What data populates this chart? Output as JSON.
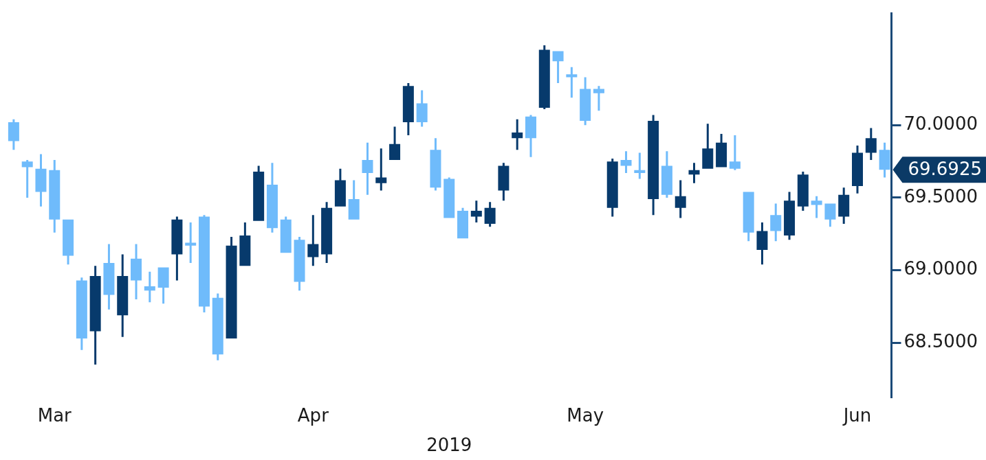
{
  "chart_data": {
    "type": "candlestick",
    "xlabel": "2019",
    "categories": [
      null,
      null,
      null,
      "Mar",
      null,
      null,
      null,
      null,
      null,
      null,
      null,
      null,
      null,
      null,
      null,
      null,
      null,
      null,
      null,
      null,
      null,
      null,
      "Apr",
      null,
      null,
      null,
      null,
      null,
      null,
      null,
      null,
      null,
      null,
      null,
      null,
      null,
      null,
      null,
      null,
      null,
      null,
      null,
      "May",
      null,
      null,
      null,
      null,
      null,
      null,
      null,
      null,
      null,
      null,
      null,
      null,
      null,
      null,
      null,
      null,
      null,
      null,
      null,
      "Jun",
      null,
      null
    ],
    "ohlc": [
      [
        70.02,
        70.04,
        69.83,
        69.89
      ],
      [
        69.75,
        69.76,
        69.5,
        69.71
      ],
      [
        69.7,
        69.8,
        69.44,
        69.54
      ],
      [
        69.69,
        69.76,
        69.26,
        69.35
      ],
      [
        69.35,
        69.35,
        69.04,
        69.1
      ],
      [
        68.93,
        68.95,
        68.45,
        68.53
      ],
      [
        68.58,
        69.03,
        68.35,
        68.96
      ],
      [
        69.05,
        69.18,
        68.73,
        68.83
      ],
      [
        68.69,
        69.11,
        68.54,
        68.96
      ],
      [
        69.08,
        69.18,
        68.8,
        68.93
      ],
      [
        68.89,
        68.99,
        68.78,
        68.86
      ],
      [
        69.02,
        69.02,
        68.77,
        68.88
      ],
      [
        69.11,
        69.37,
        68.93,
        69.35
      ],
      [
        69.19,
        69.33,
        69.05,
        69.17
      ],
      [
        69.37,
        69.38,
        68.71,
        68.75
      ],
      [
        68.81,
        68.84,
        68.38,
        68.42
      ],
      [
        68.53,
        69.23,
        68.53,
        69.17
      ],
      [
        69.03,
        69.33,
        69.03,
        69.24
      ],
      [
        69.34,
        69.72,
        69.34,
        69.68
      ],
      [
        69.59,
        69.74,
        69.26,
        69.29
      ],
      [
        69.35,
        69.37,
        69.12,
        69.12
      ],
      [
        69.21,
        69.23,
        68.86,
        68.92
      ],
      [
        69.09,
        69.38,
        69.03,
        69.18
      ],
      [
        69.11,
        69.47,
        69.05,
        69.43
      ],
      [
        69.44,
        69.7,
        69.44,
        69.62
      ],
      [
        69.49,
        69.62,
        69.35,
        69.35
      ],
      [
        69.76,
        69.88,
        69.52,
        69.67
      ],
      [
        69.6,
        69.84,
        69.55,
        69.64
      ],
      [
        69.76,
        69.99,
        69.76,
        69.87
      ],
      [
        70.02,
        70.29,
        69.93,
        70.27
      ],
      [
        70.15,
        70.24,
        69.99,
        70.02
      ],
      [
        69.83,
        69.91,
        69.55,
        69.57
      ],
      [
        69.63,
        69.64,
        69.36,
        69.36
      ],
      [
        69.41,
        69.43,
        69.22,
        69.22
      ],
      [
        69.37,
        69.48,
        69.33,
        69.41
      ],
      [
        69.32,
        69.47,
        69.3,
        69.43
      ],
      [
        69.55,
        69.74,
        69.48,
        69.72
      ],
      [
        69.91,
        70.04,
        69.83,
        69.95
      ],
      [
        70.06,
        70.07,
        69.78,
        69.91
      ],
      [
        70.12,
        70.55,
        70.11,
        70.52
      ],
      [
        70.51,
        70.51,
        70.29,
        70.44
      ],
      [
        70.35,
        70.4,
        70.19,
        70.33
      ],
      [
        70.25,
        70.33,
        70.0,
        70.03
      ],
      [
        70.25,
        70.27,
        70.1,
        70.22
      ],
      [
        69.43,
        69.77,
        69.37,
        69.75
      ],
      [
        69.76,
        69.82,
        69.67,
        69.72
      ],
      [
        69.69,
        69.81,
        69.63,
        69.67
      ],
      [
        69.49,
        70.07,
        69.38,
        70.03
      ],
      [
        69.72,
        69.82,
        69.5,
        69.52
      ],
      [
        69.43,
        69.62,
        69.36,
        69.51
      ],
      [
        69.66,
        69.74,
        69.6,
        69.69
      ],
      [
        69.7,
        70.01,
        69.7,
        69.84
      ],
      [
        69.71,
        69.94,
        69.71,
        69.88
      ],
      [
        69.75,
        69.93,
        69.69,
        69.7
      ],
      [
        69.54,
        69.54,
        69.2,
        69.26
      ],
      [
        69.14,
        69.33,
        69.04,
        69.27
      ],
      [
        69.38,
        69.46,
        69.2,
        69.27
      ],
      [
        69.24,
        69.54,
        69.21,
        69.48
      ],
      [
        69.44,
        69.68,
        69.41,
        69.66
      ],
      [
        69.48,
        69.51,
        69.36,
        69.45
      ],
      [
        69.46,
        69.46,
        69.3,
        69.35
      ],
      [
        69.37,
        69.57,
        69.32,
        69.52
      ],
      [
        69.58,
        69.86,
        69.53,
        69.81
      ],
      [
        69.81,
        69.98,
        69.76,
        69.91
      ],
      [
        69.83,
        69.88,
        69.64,
        69.6925
      ]
    ],
    "colors": [
      "#6fbbfb",
      "#6fbbfb",
      "#6fbbfb",
      "#6fbbfb",
      "#6fbbfb",
      "#6fbbfb",
      "#073a6c",
      "#6fbbfb",
      "#073a6c",
      "#6fbbfb",
      "#6fbbfb",
      "#6fbbfb",
      "#073a6c",
      "#6fbbfb",
      "#6fbbfb",
      "#6fbbfb",
      "#073a6c",
      "#073a6c",
      "#073a6c",
      "#6fbbfb",
      "#6fbbfb",
      "#6fbbfb",
      "#073a6c",
      "#073a6c",
      "#073a6c",
      "#6fbbfb",
      "#6fbbfb",
      "#073a6c",
      "#073a6c",
      "#073a6c",
      "#6fbbfb",
      "#6fbbfb",
      "#6fbbfb",
      "#6fbbfb",
      "#073a6c",
      "#073a6c",
      "#073a6c",
      "#073a6c",
      "#6fbbfb",
      "#073a6c",
      "#6fbbfb",
      "#6fbbfb",
      "#6fbbfb",
      "#6fbbfb",
      "#073a6c",
      "#6fbbfb",
      "#6fbbfb",
      "#073a6c",
      "#6fbbfb",
      "#073a6c",
      "#073a6c",
      "#073a6c",
      "#073a6c",
      "#6fbbfb",
      "#6fbbfb",
      "#073a6c",
      "#6fbbfb",
      "#073a6c",
      "#073a6c",
      "#6fbbfb",
      "#6fbbfb",
      "#073a6c",
      "#073a6c",
      "#073a6c",
      "#6fbbfb"
    ],
    "ylim": [
      68.12,
      70.77
    ],
    "yticks": [
      {
        "value": 68.5,
        "label": "68.5000"
      },
      {
        "value": 69.0,
        "label": "69.0000"
      },
      {
        "value": 69.5,
        "label": "69.5000"
      },
      {
        "value": 70.0,
        "label": "70.0000"
      }
    ],
    "annotations": [
      "69.6925"
    ],
    "grid": false,
    "legend": false
  }
}
